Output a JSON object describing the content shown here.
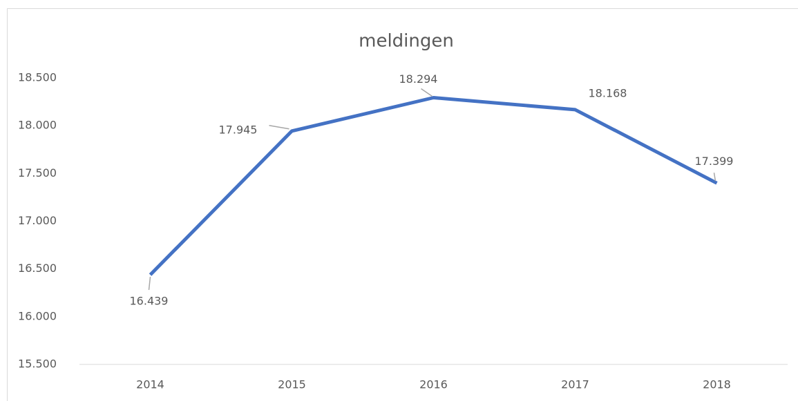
{
  "chart_data": {
    "type": "line",
    "title": "meldingen",
    "categories": [
      "2014",
      "2015",
      "2016",
      "2017",
      "2018"
    ],
    "values": [
      16439,
      17945,
      18294,
      18168,
      17399
    ],
    "value_labels": [
      "16.439",
      "17.945",
      "18.294",
      "18.168",
      "17.399"
    ],
    "color": "#4472c4",
    "ylim": [
      15500,
      18500
    ],
    "yticks": [
      {
        "value": 15500,
        "label": "15.500"
      },
      {
        "value": 16000,
        "label": "16.000"
      },
      {
        "value": 16500,
        "label": "16.500"
      },
      {
        "value": 17000,
        "label": "17.000"
      },
      {
        "value": 17500,
        "label": "17.500"
      },
      {
        "value": 18000,
        "label": "18.000"
      },
      {
        "value": 18500,
        "label": "18.500"
      }
    ],
    "grid": false
  }
}
